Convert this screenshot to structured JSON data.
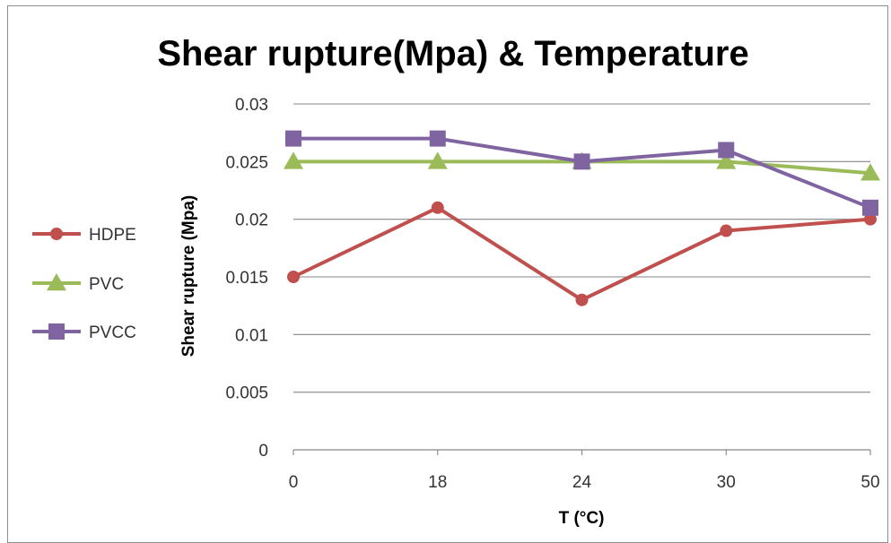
{
  "chart_data": {
    "type": "line",
    "title": "Shear rupture(Mpa) & Temperature",
    "xlabel": "T (°C)",
    "ylabel": "Shear rupture (Mpa)",
    "categories": [
      "0",
      "18",
      "24",
      "30",
      "50"
    ],
    "ylim": [
      0,
      0.03
    ],
    "yticks": [
      "0",
      "0.005",
      "0.01",
      "0.015",
      "0.02",
      "0.025",
      "0.03"
    ],
    "grid": true,
    "legend_position": "left",
    "series": [
      {
        "name": "HDPE",
        "values": [
          0.015,
          0.021,
          0.013,
          0.019,
          0.02
        ],
        "color": "#c0504d",
        "marker": "circle"
      },
      {
        "name": "PVC",
        "values": [
          0.025,
          0.025,
          0.025,
          0.025,
          0.024
        ],
        "color": "#9bbb59",
        "marker": "triangle"
      },
      {
        "name": "PVCC",
        "values": [
          0.027,
          0.027,
          0.025,
          0.026,
          0.021
        ],
        "color": "#8064a2",
        "marker": "square"
      }
    ]
  }
}
